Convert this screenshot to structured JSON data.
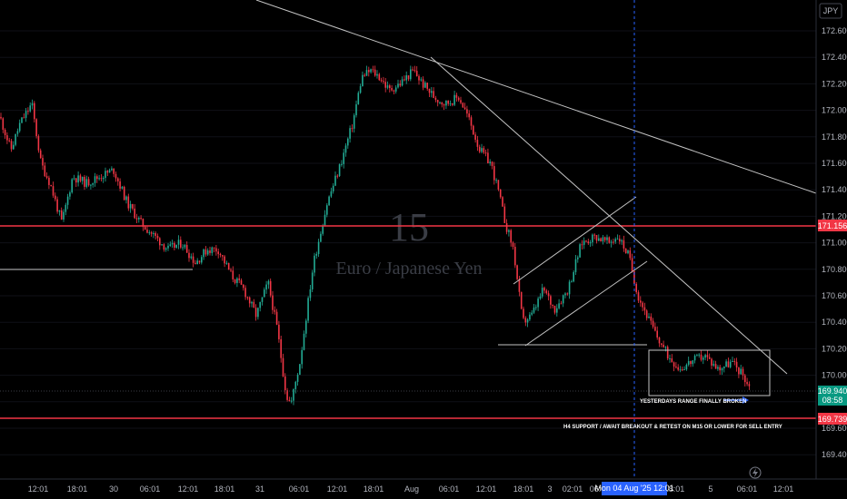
{
  "currency_button": "JPY",
  "watermark": {
    "interval": "15",
    "symbol": "Euro / Japanese Yen"
  },
  "chart_data": {
    "type": "candlestick",
    "ylim": [
      169.31,
      172.72
    ],
    "y_ticks": [
      "172.600",
      "172.400",
      "172.200",
      "172.000",
      "171.800",
      "171.600",
      "171.400",
      "171.200",
      "171.000",
      "170.800",
      "170.600",
      "170.400",
      "170.200",
      "170.000",
      "169.800",
      "169.600",
      "169.400"
    ],
    "x_ticks": [
      "12:01",
      "18:01",
      "30",
      "06:01",
      "12:01",
      "18:01",
      "31",
      "06:01",
      "12:01",
      "18:01",
      "Aug",
      "06:01",
      "12:01",
      "18:01",
      "3",
      "02:01",
      "06:01",
      "12:01",
      "18:01",
      "5",
      "06:01",
      "12:01"
    ],
    "crosshair_label": "Mon 04 Aug '25   12:01",
    "price_tags": {
      "resistance": "171.156",
      "current": "169.940",
      "countdown": "08:58",
      "support": "169.739"
    },
    "annotations": [
      "YESTERDAYS RANGE FINALLY BROKEN",
      "H4 SUPPORT / AWAIT BREAKOUT & RETEST ON M15 OR LOWER FOR SELL ENTRY"
    ],
    "horizontal_levels": [
      171.156,
      169.739,
      170.86
    ],
    "colors": {
      "up": "#22ab94",
      "down": "#f23645",
      "level": "#f23645",
      "trend": "#c4c4c4",
      "crosshair": "#2962ff",
      "current": "#089981"
    },
    "anchors": [
      [
        0,
        171.95
      ],
      [
        12,
        171.7
      ],
      [
        22,
        171.9
      ],
      [
        35,
        172.05
      ],
      [
        45,
        171.6
      ],
      [
        55,
        171.45
      ],
      [
        68,
        171.15
      ],
      [
        80,
        171.5
      ],
      [
        95,
        171.45
      ],
      [
        110,
        171.5
      ],
      [
        125,
        171.55
      ],
      [
        140,
        171.3
      ],
      [
        155,
        171.15
      ],
      [
        170,
        171.05
      ],
      [
        185,
        170.95
      ],
      [
        200,
        171.0
      ],
      [
        215,
        170.85
      ],
      [
        228,
        170.95
      ],
      [
        240,
        170.95
      ],
      [
        255,
        170.75
      ],
      [
        268,
        170.65
      ],
      [
        282,
        170.45
      ],
      [
        295,
        170.7
      ],
      [
        305,
        170.35
      ],
      [
        315,
        169.85
      ],
      [
        320,
        169.78
      ],
      [
        330,
        170.1
      ],
      [
        345,
        170.85
      ],
      [
        360,
        171.3
      ],
      [
        375,
        171.6
      ],
      [
        388,
        171.9
      ],
      [
        398,
        172.25
      ],
      [
        408,
        172.3
      ],
      [
        418,
        172.25
      ],
      [
        428,
        172.15
      ],
      [
        440,
        172.2
      ],
      [
        455,
        172.3
      ],
      [
        465,
        172.2
      ],
      [
        478,
        172.1
      ],
      [
        490,
        172.05
      ],
      [
        505,
        172.1
      ],
      [
        515,
        171.95
      ],
      [
        528,
        171.7
      ],
      [
        540,
        171.6
      ],
      [
        548,
        171.4
      ],
      [
        556,
        171.15
      ],
      [
        565,
        170.95
      ],
      [
        575,
        170.4
      ],
      [
        585,
        170.45
      ],
      [
        598,
        170.65
      ],
      [
        610,
        170.5
      ],
      [
        625,
        170.65
      ],
      [
        640,
        171.0
      ],
      [
        655,
        171.05
      ],
      [
        670,
        171.0
      ],
      [
        680,
        171.05
      ],
      [
        692,
        170.9
      ],
      [
        702,
        170.6
      ],
      [
        712,
        170.45
      ],
      [
        722,
        170.3
      ],
      [
        735,
        170.15
      ],
      [
        748,
        170.05
      ],
      [
        760,
        170.1
      ],
      [
        775,
        170.15
      ],
      [
        790,
        170.05
      ],
      [
        805,
        170.1
      ],
      [
        818,
        170.0
      ],
      [
        826,
        169.89
      ]
    ]
  }
}
